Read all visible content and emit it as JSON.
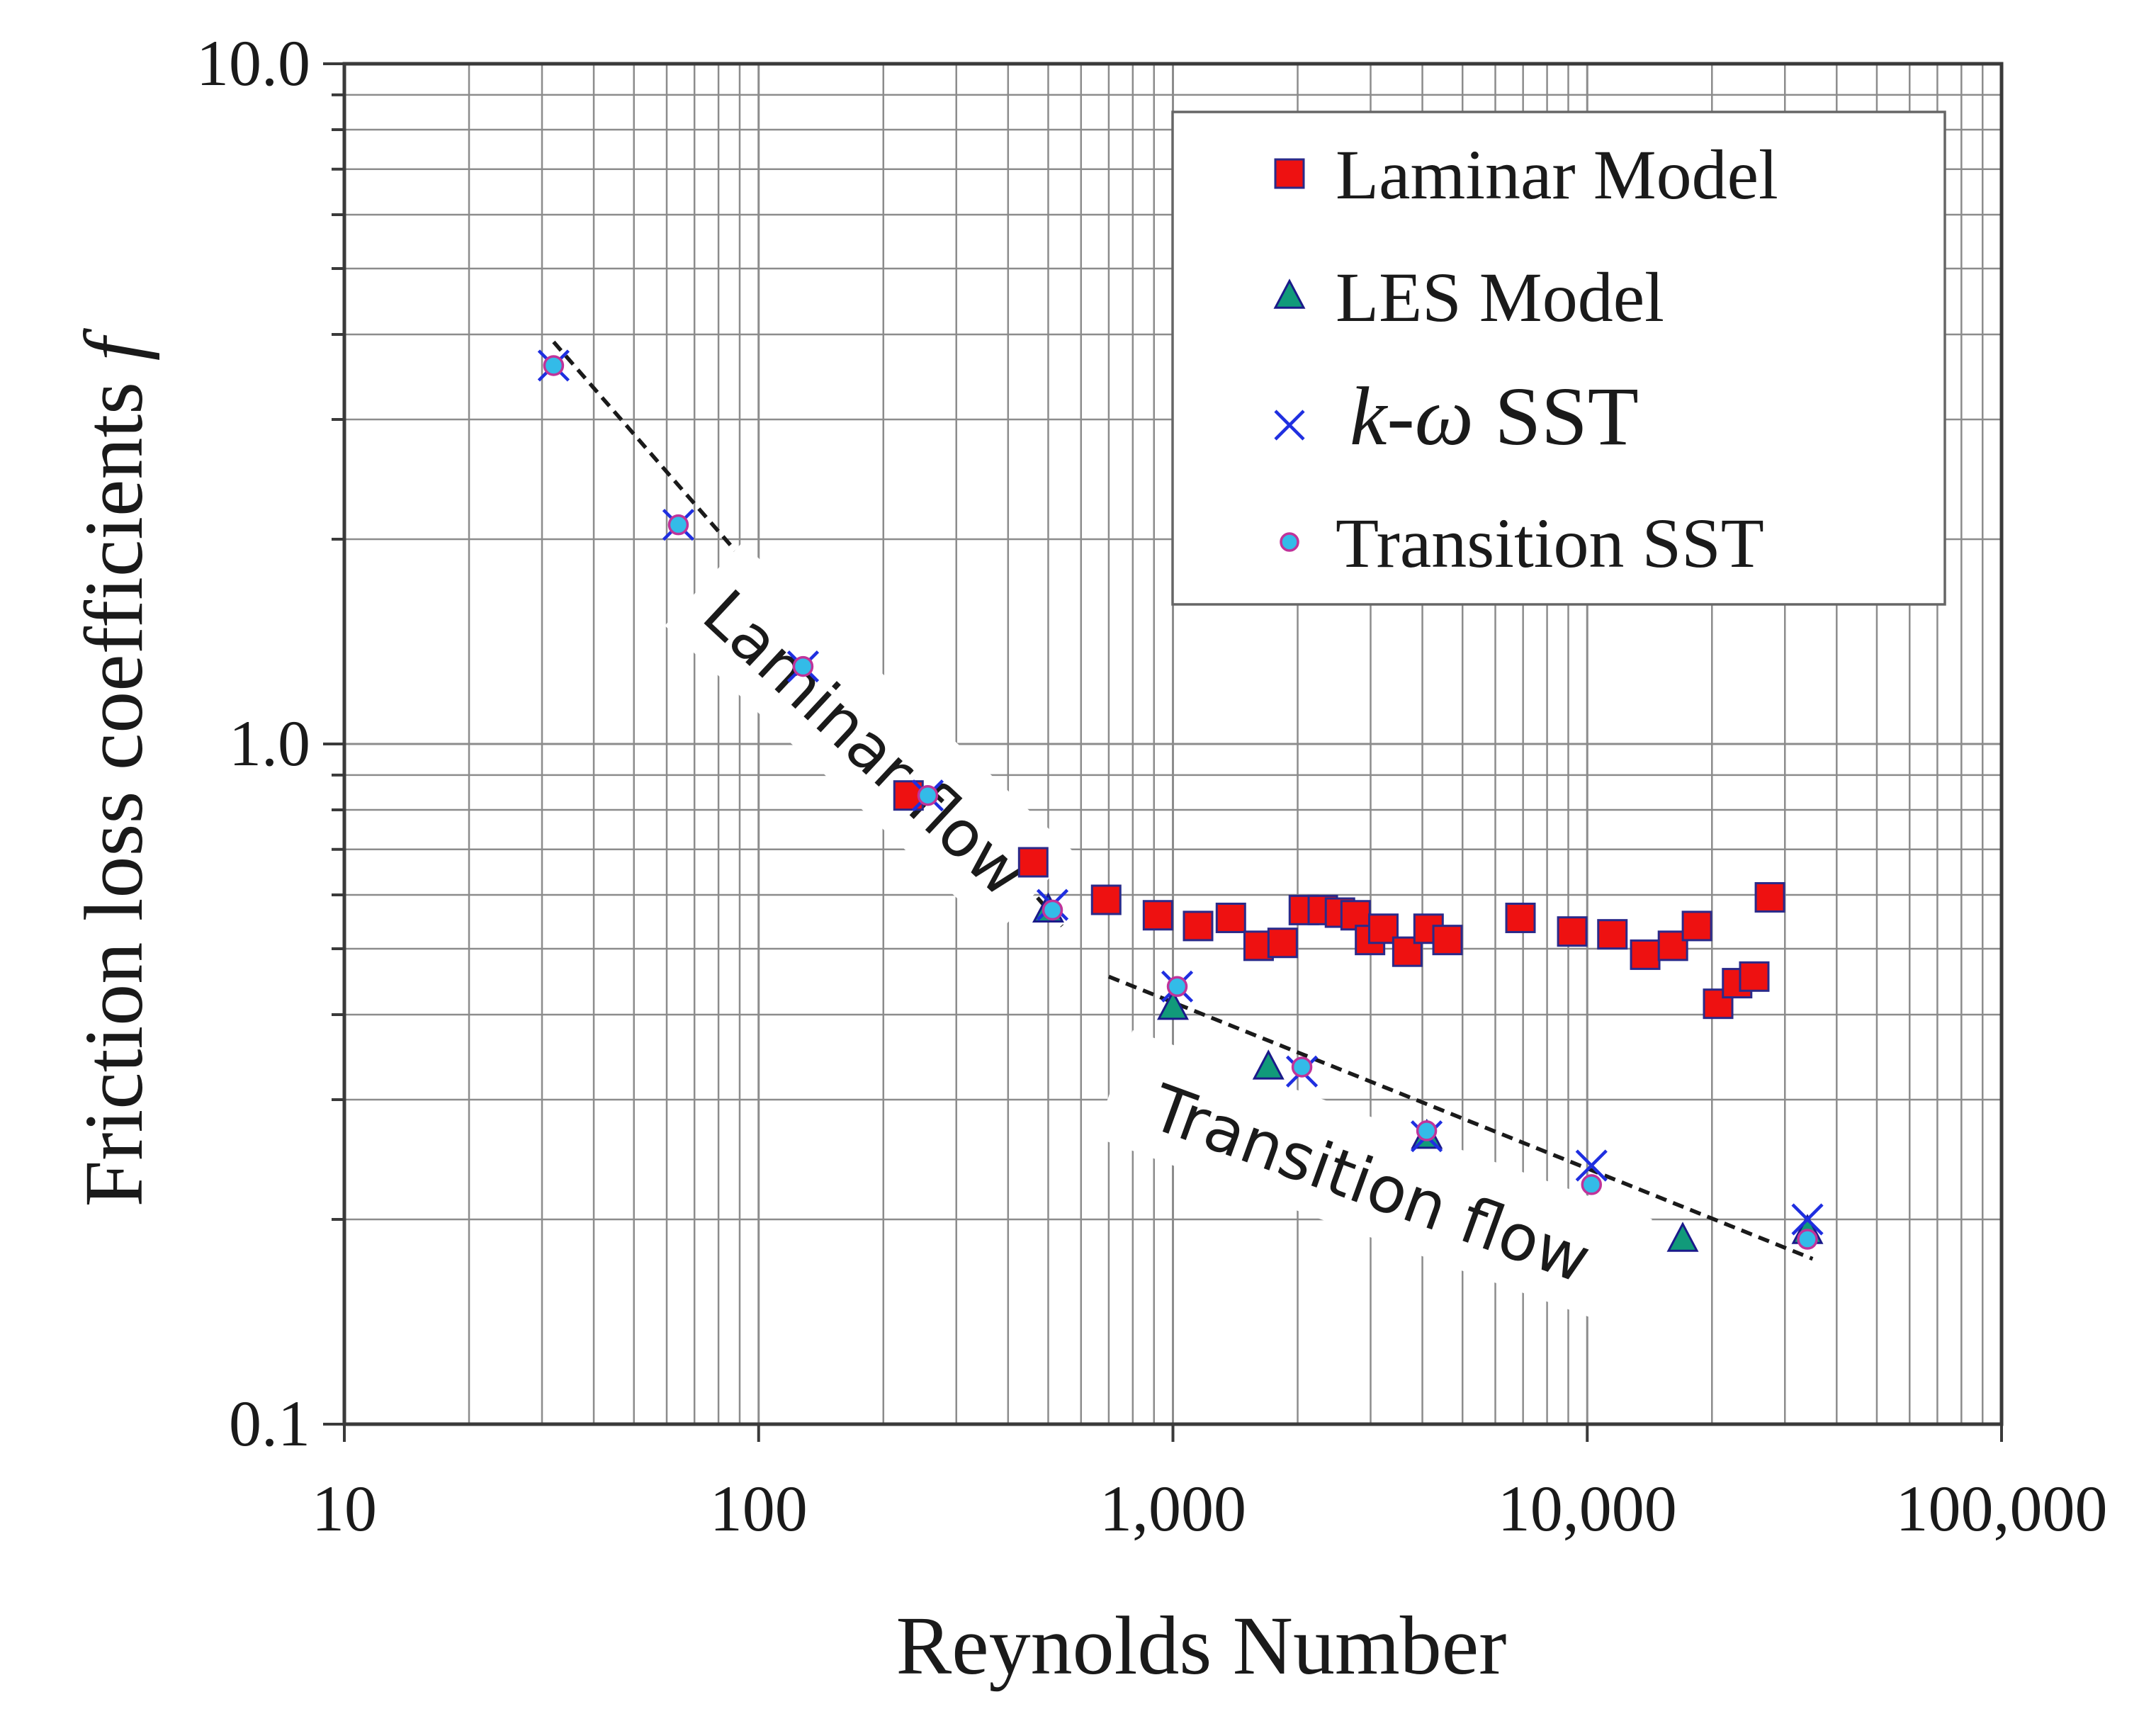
{
  "colors": {
    "laminar_fill": "#ee1111",
    "laminar_edge": "#2a2a8a",
    "les_fill": "#119a7a",
    "les_edge": "#1a1a8a",
    "kw_stroke": "#1f2fe0",
    "transition_fill": "#33bbe8",
    "transition_edge": "#c0339a",
    "grid": "#8c8c8c",
    "axis": "#3a3a3a",
    "trend": "#1a1a1a"
  },
  "chart_data": {
    "type": "scatter",
    "title": "",
    "xlabel": "Reynolds Number",
    "ylabel": "Friction loss coefficients ",
    "ylabel_symbol": "f",
    "xscale": "log",
    "yscale": "log",
    "xlim": [
      10,
      100000
    ],
    "ylim": [
      0.1,
      10
    ],
    "grid": true,
    "legend_position": "top-right",
    "x_tick_labels": [
      "10",
      "100",
      "1,000",
      "10,000",
      "100,000"
    ],
    "y_tick_labels": [
      "0.1",
      "1.0",
      "10.0"
    ],
    "legend": [
      {
        "label": "Laminar Model",
        "marker": "square"
      },
      {
        "label": "LES Model",
        "marker": "triangle"
      },
      {
        "label_symbol": "k",
        "label_dash": "-",
        "label_omega": "ω",
        "label_rest": " SST",
        "marker": "x"
      },
      {
        "label": "Transition SST",
        "marker": "circle"
      }
    ],
    "series": [
      {
        "name": "Laminar Model",
        "marker": "square",
        "x": [
          230,
          460,
          690,
          920,
          1150,
          1380,
          1610,
          1840,
          2070,
          2300,
          2530,
          2760,
          2990,
          3220,
          3680,
          4140,
          4600,
          6900,
          9200,
          11500,
          13800,
          16100,
          18400,
          20700,
          23000,
          25300,
          27600
        ],
        "y": [
          0.84,
          0.67,
          0.59,
          0.56,
          0.54,
          0.555,
          0.505,
          0.51,
          0.57,
          0.57,
          0.565,
          0.56,
          0.515,
          0.535,
          0.495,
          0.535,
          0.515,
          0.555,
          0.53,
          0.525,
          0.49,
          0.505,
          0.54,
          0.415,
          0.445,
          0.455,
          0.595
        ]
      },
      {
        "name": "LES Model",
        "marker": "triangle",
        "x": [
          500,
          1000,
          1700,
          4100,
          17000,
          34000
        ],
        "y": [
          0.57,
          0.41,
          0.335,
          0.265,
          0.187,
          0.192
        ]
      },
      {
        "name": "k-ω SST",
        "marker": "x",
        "x": [
          32,
          64,
          128,
          256,
          512,
          1024,
          2048,
          4096,
          10240,
          34000
        ],
        "y": [
          3.6,
          2.1,
          1.3,
          0.84,
          0.58,
          0.44,
          0.33,
          0.265,
          0.24,
          0.2
        ]
      },
      {
        "name": "Transition SST",
        "marker": "circle",
        "x": [
          32,
          64,
          128,
          256,
          512,
          1024,
          2048,
          4096,
          10240,
          34000
        ],
        "y": [
          3.6,
          2.1,
          1.3,
          0.84,
          0.57,
          0.44,
          0.335,
          0.27,
          0.225,
          0.187
        ]
      }
    ],
    "trend_lines": [
      {
        "name": "laminar-trend",
        "x": [
          32,
          540
        ],
        "y": [
          3.9,
          0.54
        ]
      },
      {
        "name": "transition-trend",
        "x": [
          700,
          35000
        ],
        "y": [
          0.455,
          0.175
        ]
      }
    ],
    "annotations": [
      {
        "name": "laminar-flow-label",
        "text": "Laminar flow",
        "x": 180,
        "y": 1.0
      },
      {
        "name": "transition-flow-label",
        "text": "Transition flow",
        "x": 3000,
        "y": 0.225
      }
    ]
  }
}
